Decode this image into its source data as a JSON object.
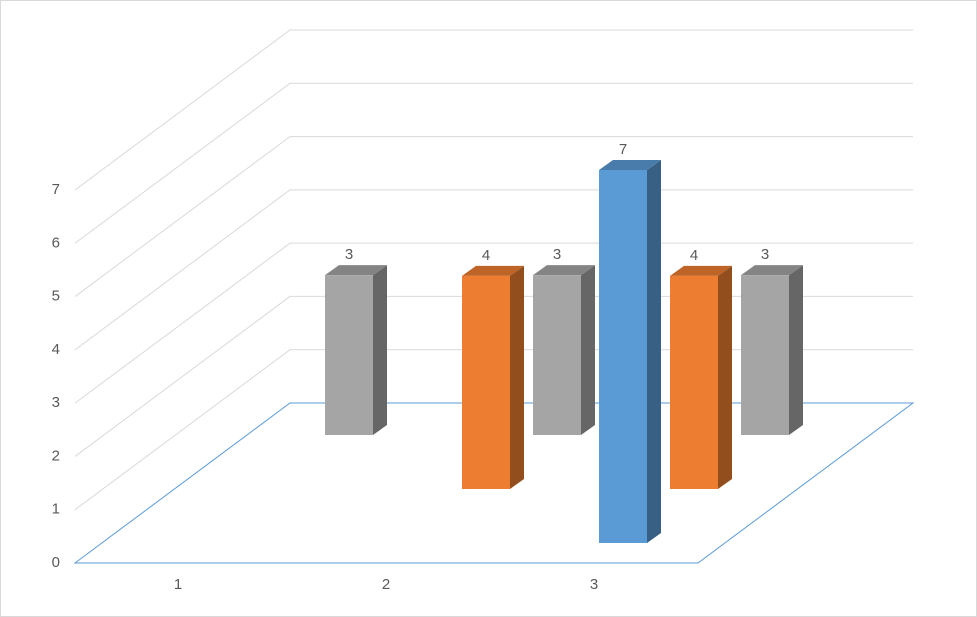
{
  "chart_data": {
    "type": "bar3d",
    "categories": [
      "1",
      "2",
      "3"
    ],
    "series": [
      {
        "color": "#5b9bd5",
        "values": [
          null,
          null,
          7
        ]
      },
      {
        "color": "#ed7d31",
        "values": [
          null,
          4,
          4
        ]
      },
      {
        "color": "#a5a5a5",
        "values": [
          3,
          3,
          3
        ]
      }
    ],
    "ylim": [
      0,
      7
    ],
    "yticks": [
      0,
      1,
      2,
      3,
      4,
      5,
      6,
      7
    ],
    "grid": true,
    "data_labels": true
  }
}
